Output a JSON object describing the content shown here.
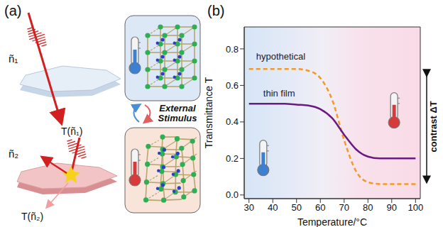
{
  "panel_a": {
    "label": "(a)",
    "top": {
      "index": "ñ₁",
      "transmitted": "T(ñ₁)"
    },
    "bottom": {
      "index": "ñ₂",
      "transmitted": "T(ñ₂)"
    },
    "stimulus": "External Stimulus"
  },
  "chart_data": {
    "type": "line",
    "panel_label": "(b)",
    "x_label": "Temperature/°C",
    "y_label": "Transmittance T",
    "annotations": [
      "hypothetical",
      "thin film",
      "contrast ΔT"
    ],
    "x": [
      30,
      35,
      40,
      45,
      50,
      55,
      60,
      65,
      70,
      75,
      80,
      85,
      90,
      95,
      100
    ],
    "series": [
      {
        "name": "hypothetical",
        "color": "#f39a26",
        "line_style": "dashed",
        "values": [
          0.69,
          0.69,
          0.69,
          0.69,
          0.69,
          0.68,
          0.64,
          0.52,
          0.3,
          0.13,
          0.07,
          0.06,
          0.06,
          0.06,
          0.06
        ]
      },
      {
        "name": "thin film",
        "color": "#6a1b80",
        "line_style": "solid",
        "values": [
          0.5,
          0.5,
          0.5,
          0.5,
          0.495,
          0.49,
          0.47,
          0.42,
          0.33,
          0.25,
          0.21,
          0.2,
          0.2,
          0.2,
          0.2
        ]
      }
    ],
    "xlim": [
      28,
      102
    ],
    "xticks": [
      30,
      40,
      50,
      60,
      70,
      80,
      90,
      100
    ],
    "ylim": [
      -0.02,
      0.92
    ],
    "yticks": [
      {
        "value": 0,
        "label": "0.0"
      },
      {
        "value": 0.2,
        "label": "0.2"
      },
      {
        "value": 0.4,
        "label": "0.4"
      },
      {
        "value": 0.6,
        "label": "0.6"
      },
      {
        "value": 0.8,
        "label": "0.8"
      }
    ],
    "grid": false
  }
}
